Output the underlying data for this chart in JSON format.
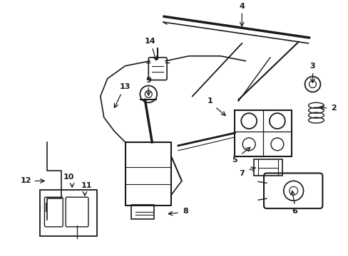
{
  "bg_color": "#ffffff",
  "line_color": "#1a1a1a",
  "figsize": [
    4.89,
    3.6
  ],
  "dpi": 100,
  "lw_thick": 2.0,
  "lw_med": 1.2,
  "lw_thin": 0.8,
  "font_size": 8,
  "font_weight": "bold"
}
